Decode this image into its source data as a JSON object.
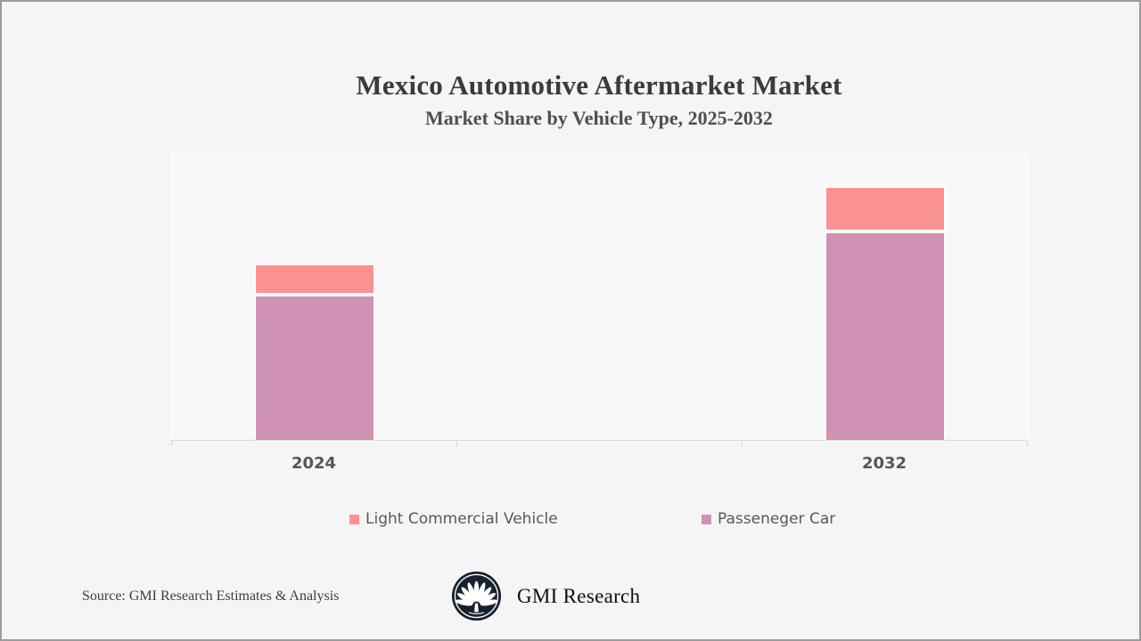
{
  "page": {
    "background": "#f5f5f6",
    "frame_border_color": "#9c9c9c"
  },
  "header": {
    "title": "Mexico Automotive Aftermarket Market",
    "subtitle": "Market Share by Vehicle Type, 2025-2032"
  },
  "chart_data": {
    "type": "bar",
    "stacked": true,
    "categories": [
      "2024",
      "2032"
    ],
    "series": [
      {
        "name": "Passeneger Car",
        "color": "#d092b4",
        "values": [
          51,
          73
        ]
      },
      {
        "name": "Light Commercial Vehicle",
        "color": "#fb9292",
        "values": [
          11,
          16
        ]
      }
    ],
    "title": "Mexico Automotive Aftermarket Market",
    "subtitle": "Market Share by Vehicle Type, 2025-2032",
    "xlabel": "",
    "ylabel": "",
    "ylim": [
      0,
      100
    ],
    "value_note": "axis unlabeled; values estimated as percent of plot height",
    "grid": false,
    "axis_color": "#d5d5d5",
    "legend_position": "bottom"
  },
  "legend": {
    "items": [
      {
        "label": "Light Commercial Vehicle",
        "color": "#fb9292"
      },
      {
        "label": "Passeneger Car",
        "color": "#d092b4"
      }
    ]
  },
  "footer": {
    "source": "Source: GMI Research Estimates & Analysis",
    "logo_text": "GMI Research",
    "logo_icon": "palm-tree-in-circle",
    "logo_color": "#18222f"
  }
}
